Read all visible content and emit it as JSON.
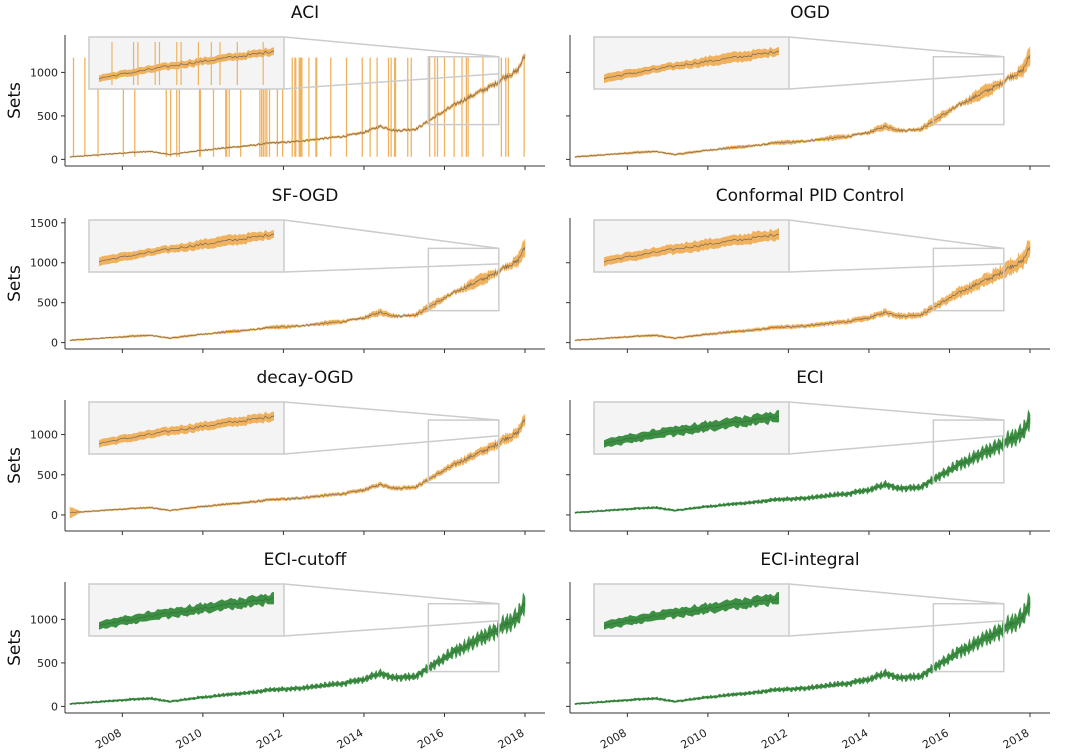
{
  "chart_data": [
    {
      "type": "line",
      "title": "ACI",
      "ylabel": "Sets",
      "color": "#f0b25e",
      "line_color": "#555555",
      "yticks": [
        0,
        500,
        1000
      ],
      "ylim": [
        -30,
        1430
      ],
      "show_ylabel": true,
      "show_xticks": false,
      "style": "aci"
    },
    {
      "type": "line",
      "title": "OGD",
      "ylabel": "",
      "color": "#f0b25e",
      "line_color": "#555555",
      "yticks": [],
      "ylim": [
        -30,
        1430
      ],
      "show_ylabel": false,
      "show_xticks": false,
      "style": "band"
    },
    {
      "type": "line",
      "title": "SF-OGD",
      "ylabel": "Sets",
      "color": "#f0b25e",
      "line_color": "#555555",
      "yticks": [
        0,
        500,
        1000,
        1500
      ],
      "ylim": [
        -30,
        1560
      ],
      "show_ylabel": true,
      "show_xticks": false,
      "style": "band"
    },
    {
      "type": "line",
      "title": "Conformal PID Control",
      "ylabel": "",
      "color": "#f0b25e",
      "line_color": "#555555",
      "yticks": [],
      "ylim": [
        -30,
        1560
      ],
      "show_ylabel": false,
      "show_xticks": false,
      "style": "pid"
    },
    {
      "type": "line",
      "title": "decay-OGD",
      "ylabel": "Sets",
      "color": "#f0b25e",
      "line_color": "#555555",
      "yticks": [
        0,
        500,
        1000
      ],
      "ylim": [
        -150,
        1430
      ],
      "show_ylabel": true,
      "show_xticks": false,
      "style": "decay"
    },
    {
      "type": "line",
      "title": "ECI",
      "ylabel": "",
      "color": "#3d8f44",
      "line_color": "#2e6b32",
      "yticks": [],
      "ylim": [
        -150,
        1430
      ],
      "show_ylabel": false,
      "show_xticks": false,
      "style": "eci"
    },
    {
      "type": "line",
      "title": "ECI-cutoff",
      "ylabel": "Sets",
      "color": "#3d8f44",
      "line_color": "#2e6b32",
      "yticks": [
        0,
        500,
        1000
      ],
      "ylim": [
        -30,
        1430
      ],
      "show_ylabel": true,
      "show_xticks": true,
      "style": "eci"
    },
    {
      "type": "line",
      "title": "ECI-integral",
      "ylabel": "",
      "color": "#3d8f44",
      "line_color": "#2e6b32",
      "yticks": [],
      "ylim": [
        -30,
        1430
      ],
      "show_ylabel": false,
      "show_xticks": true,
      "style": "eci"
    }
  ],
  "x_axis": {
    "start": 2006.7,
    "end": 2018.0,
    "ticks": [
      2008,
      2010,
      2012,
      2014,
      2016,
      2018
    ]
  },
  "price_path": [
    [
      2006.7,
      28
    ],
    [
      2007.5,
      55
    ],
    [
      2008.2,
      80
    ],
    [
      2008.7,
      90
    ],
    [
      2009.2,
      55
    ],
    [
      2009.8,
      95
    ],
    [
      2010.5,
      130
    ],
    [
      2011.2,
      160
    ],
    [
      2011.7,
      190
    ],
    [
      2012.2,
      200
    ],
    [
      2012.8,
      230
    ],
    [
      2013.5,
      265
    ],
    [
      2014.0,
      310
    ],
    [
      2014.4,
      380
    ],
    [
      2014.8,
      330
    ],
    [
      2015.3,
      350
    ],
    [
      2015.8,
      500
    ],
    [
      2016.3,
      640
    ],
    [
      2016.8,
      760
    ],
    [
      2017.2,
      850
    ],
    [
      2017.5,
      950
    ],
    [
      2017.8,
      1010
    ],
    [
      2018.0,
      1190
    ]
  ],
  "inset": {
    "zoom_x_range": [
      2015.6,
      2017.35
    ],
    "fill_color": "#f4f4f4",
    "border_color": "#cccccc"
  }
}
